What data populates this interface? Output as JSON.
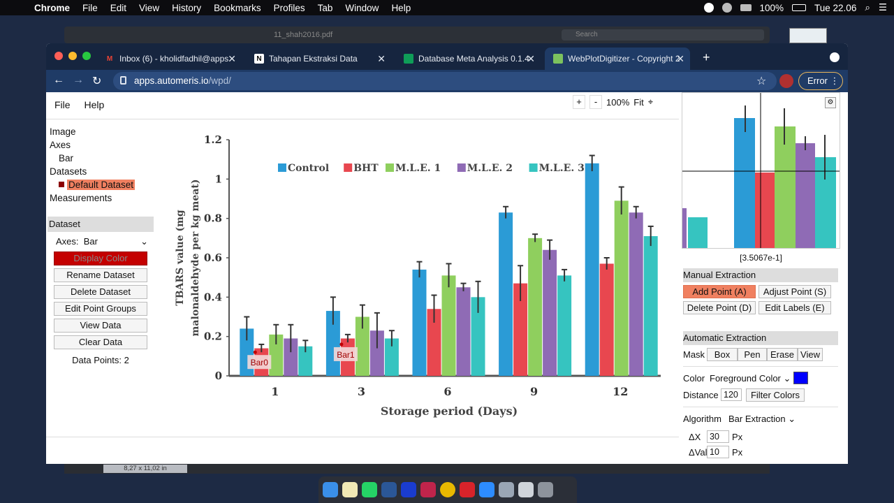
{
  "macos": {
    "menu": [
      "Chrome",
      "File",
      "Edit",
      "View",
      "History",
      "Bookmarks",
      "Profiles",
      "Tab",
      "Window",
      "Help"
    ],
    "battery": "100%",
    "clock": "Tue 22.06"
  },
  "desktop": {
    "bg_window_title": "11_shah2016.pdf",
    "bg_search": "Search",
    "page_size": "8,27 x 11,02 in"
  },
  "browser": {
    "tabs": [
      {
        "title": "Inbox (6) - kholidfadhil@apps.",
        "fav": "M",
        "fav_color": "#ea4335"
      },
      {
        "title": "Tahapan Ekstraksi Data",
        "fav": "N",
        "fav_color": "#ffffff"
      },
      {
        "title": "Database Meta Analysis 0.1.4 |",
        "fav": "",
        "fav_color": "#0f9d58"
      },
      {
        "title": "WebPlotDigitizer - Copyright 2",
        "fav": "",
        "fav_color": "#7cc25e"
      }
    ],
    "url_host": "apps.automeris.io",
    "url_path": "/wpd/",
    "error_label": "Error"
  },
  "wpd": {
    "menu": {
      "file": "File",
      "help": "Help"
    },
    "zoom": {
      "plus": "+",
      "minus": "-",
      "level": "100%",
      "fit": "Fit"
    },
    "tree": {
      "image": "Image",
      "axes": "Axes",
      "bar": "Bar",
      "datasets": "Datasets",
      "default_dataset": "Default Dataset",
      "measurements": "Measurements"
    },
    "dataset_panel": {
      "header": "Dataset",
      "axes_label": "Axes:",
      "axes_value": "Bar",
      "display_color": "Display Color",
      "rename": "Rename Dataset",
      "delete": "Delete Dataset",
      "edit_groups": "Edit Point Groups",
      "view_data": "View Data",
      "clear_data": "Clear Data",
      "data_points": "Data Points: 2"
    },
    "zoom_coord": "[3.5067e-1]",
    "manual": {
      "header": "Manual Extraction",
      "add": "Add Point (A)",
      "adjust": "Adjust Point (S)",
      "delete": "Delete Point (D)",
      "edit_labels": "Edit Labels (E)"
    },
    "auto": {
      "header": "Automatic Extraction",
      "mask_label": "Mask",
      "box": "Box",
      "pen": "Pen",
      "erase": "Erase",
      "view": "View",
      "color_label": "Color",
      "color_mode": "Foreground Color",
      "distance_label": "Distance",
      "distance": "120",
      "filter_colors": "Filter Colors",
      "algorithm_label": "Algorithm",
      "algorithm": "Bar Extraction",
      "dx_label": "ΔX",
      "dx": "30",
      "dval_label": "ΔVal",
      "dval": "10",
      "px": "Px",
      "mask_color": "#0000ff"
    }
  },
  "chart_data": {
    "type": "bar",
    "title": "",
    "xlabel": "Storage period (Days)",
    "ylabel": "TBARS value (mg malonaldehyde per kg meat)",
    "ylim": [
      0,
      1.2
    ],
    "yticks": [
      "0",
      "0.2",
      "0.4",
      "0.6",
      "0.8",
      "1",
      "1.2"
    ],
    "categories": [
      "1",
      "3",
      "6",
      "9",
      "12"
    ],
    "legend_position": "top",
    "series": [
      {
        "name": "Control",
        "color": "#2b9bd6",
        "values": [
          0.24,
          0.33,
          0.54,
          0.83,
          1.08
        ],
        "errors": [
          0.06,
          0.07,
          0.04,
          0.03,
          0.04
        ]
      },
      {
        "name": "BHT",
        "color": "#e8474f",
        "values": [
          0.14,
          0.19,
          0.34,
          0.47,
          0.57
        ],
        "errors": [
          0.02,
          0.02,
          0.07,
          0.09,
          0.03
        ]
      },
      {
        "name": "M.L.E. 1",
        "color": "#8fcf5e",
        "values": [
          0.21,
          0.3,
          0.51,
          0.7,
          0.89
        ],
        "errors": [
          0.05,
          0.06,
          0.06,
          0.02,
          0.07
        ]
      },
      {
        "name": "M.L.E. 2",
        "color": "#8f6bb5",
        "values": [
          0.19,
          0.23,
          0.45,
          0.64,
          0.83
        ],
        "errors": [
          0.07,
          0.09,
          0.02,
          0.05,
          0.03
        ]
      },
      {
        "name": "M.L.E. 3",
        "color": "#36c4c0",
        "values": [
          0.15,
          0.19,
          0.4,
          0.51,
          0.71
        ],
        "errors": [
          0.03,
          0.04,
          0.08,
          0.03,
          0.05
        ]
      }
    ],
    "annotations": [
      {
        "label": "Bar0",
        "category": "1",
        "value": 0.12
      },
      {
        "label": "Bar1",
        "category": "3",
        "value": 0.16
      }
    ]
  }
}
